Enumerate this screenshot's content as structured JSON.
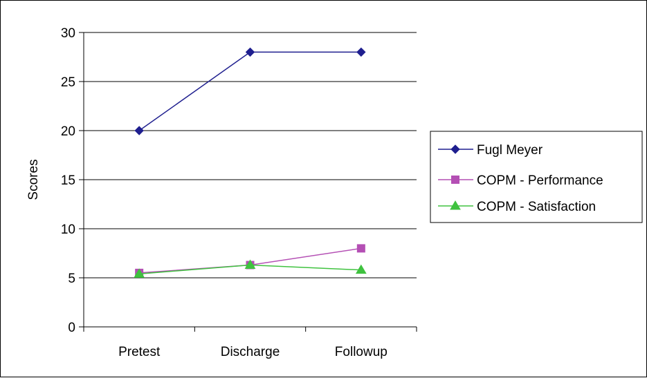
{
  "chart_data": {
    "type": "line",
    "title": "",
    "xlabel": "",
    "ylabel": "Scores",
    "categories": [
      "Pretest",
      "Discharge",
      "Followup"
    ],
    "ylim": [
      0,
      30
    ],
    "yticks": [
      0,
      5,
      10,
      15,
      20,
      25,
      30
    ],
    "grid": true,
    "legend_position": "right",
    "series": [
      {
        "name": "Fugl Meyer",
        "values": [
          20,
          28,
          28
        ],
        "color": "#1f1f8f",
        "marker": "diamond"
      },
      {
        "name": "COPM - Performance",
        "values": [
          5.5,
          6.3,
          8
        ],
        "color": "#b44fb4",
        "marker": "square"
      },
      {
        "name": "COPM - Satisfaction",
        "values": [
          5.4,
          6.3,
          5.8
        ],
        "color": "#3fc23f",
        "marker": "triangle"
      }
    ]
  }
}
